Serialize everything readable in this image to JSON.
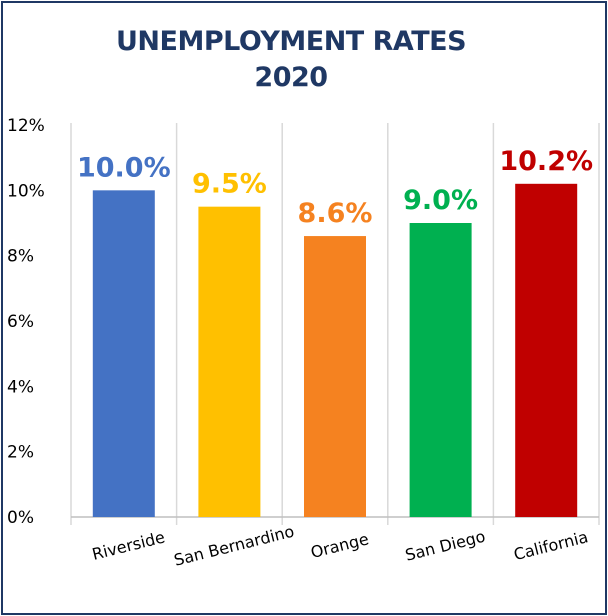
{
  "chart_data": {
    "type": "bar",
    "title": "UNEMPLOYMENT RATES",
    "subtitle": "2020",
    "categories": [
      "Riverside",
      "San Bernardino",
      "Orange",
      "San Diego",
      "California"
    ],
    "values": [
      10.0,
      9.5,
      8.6,
      9.0,
      10.2
    ],
    "data_labels": [
      "10.0%",
      "9.5%",
      "8.6%",
      "9.0%",
      "10.2%"
    ],
    "colors": [
      "#4472c4",
      "#ffc000",
      "#f58220",
      "#00b050",
      "#c00000"
    ],
    "ylim": [
      0,
      12
    ],
    "yticks": [
      0,
      2,
      4,
      6,
      8,
      10,
      12
    ],
    "ytick_labels": [
      "0%",
      "2%",
      "4%",
      "6%",
      "8%",
      "10%",
      "12%"
    ],
    "xlabel": "",
    "ylabel": "",
    "grid": "vertical separators between categories",
    "legend": "none",
    "title_color": "#1f3864"
  }
}
